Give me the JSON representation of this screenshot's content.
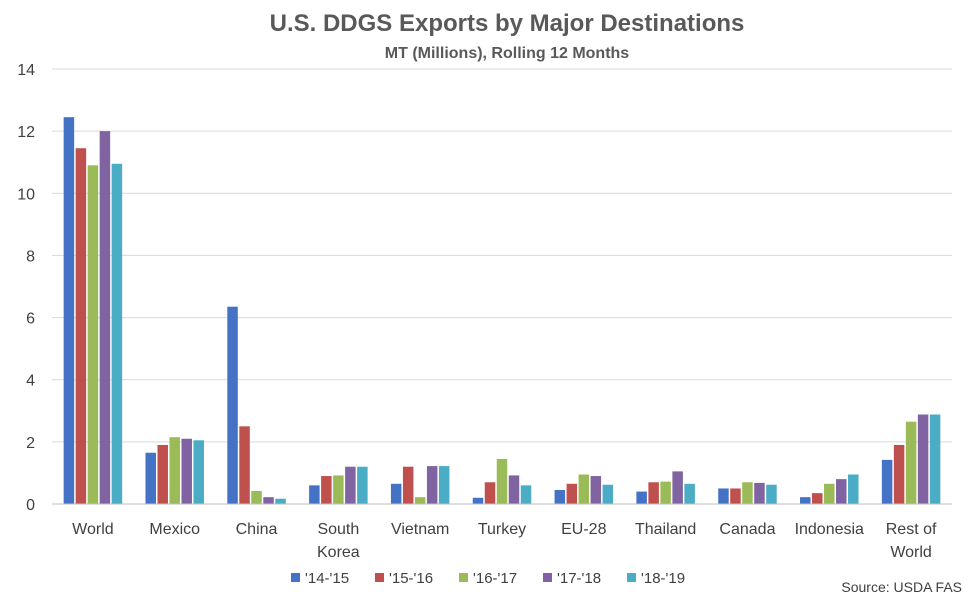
{
  "chart_data": {
    "type": "bar",
    "title": "U.S. DDGS Exports by Major Destinations",
    "subtitle": "MT (Millions), Rolling 12 Months",
    "xlabel": "",
    "ylabel": "",
    "ylim": [
      0,
      14
    ],
    "yticks": [
      0,
      2,
      4,
      6,
      8,
      10,
      12,
      14
    ],
    "grid": true,
    "legend_position": "bottom",
    "categories": [
      "World",
      "Mexico",
      "China",
      "South Korea",
      "Vietnam",
      "Turkey",
      "EU-28",
      "Thailand",
      "Canada",
      "Indonesia",
      "Rest of World"
    ],
    "category_lines": [
      [
        "World"
      ],
      [
        "Mexico"
      ],
      [
        "China"
      ],
      [
        "South",
        "Korea"
      ],
      [
        "Vietnam"
      ],
      [
        "Turkey"
      ],
      [
        "EU-28"
      ],
      [
        "Thailand"
      ],
      [
        "Canada"
      ],
      [
        "Indonesia"
      ],
      [
        "Rest of",
        "World"
      ]
    ],
    "series": [
      {
        "name": "'14-'15",
        "color": "#4472c4",
        "values": [
          12.45,
          1.65,
          6.35,
          0.6,
          0.65,
          0.2,
          0.45,
          0.4,
          0.5,
          0.22,
          1.42
        ]
      },
      {
        "name": "'15-'16",
        "color": "#c0504d",
        "values": [
          11.45,
          1.9,
          2.5,
          0.9,
          1.2,
          0.7,
          0.65,
          0.7,
          0.5,
          0.35,
          1.9
        ]
      },
      {
        "name": "'16-'17",
        "color": "#9bbb59",
        "values": [
          10.9,
          2.15,
          0.42,
          0.92,
          0.22,
          1.45,
          0.95,
          0.72,
          0.7,
          0.65,
          2.65
        ]
      },
      {
        "name": "'17-'18",
        "color": "#8064a2",
        "values": [
          12.0,
          2.1,
          0.22,
          1.2,
          1.22,
          0.92,
          0.9,
          1.05,
          0.68,
          0.8,
          2.88
        ]
      },
      {
        "name": "'18-'19",
        "color": "#4bacc6",
        "values": [
          10.95,
          2.05,
          0.17,
          1.2,
          1.22,
          0.6,
          0.62,
          0.65,
          0.62,
          0.95,
          2.88
        ]
      }
    ],
    "source": "Source: USDA FAS"
  }
}
